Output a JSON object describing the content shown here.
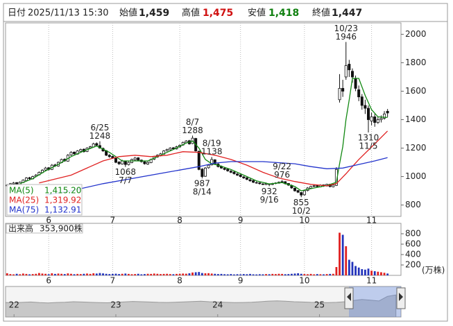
{
  "header": {
    "date_label": "日付",
    "datetime": "2025/11/13 15:30",
    "open_label": "始値",
    "open": "1,459",
    "high_label": "高値",
    "high": "1,475",
    "low_label": "安値",
    "low": "1,418",
    "close_label": "終値",
    "close": "1,447"
  },
  "chart_data": [
    {
      "type": "candlestick",
      "xlim": [
        -0.5,
        123.2
      ],
      "ylim": [
        720,
        2080
      ],
      "yticks": [
        800,
        1000,
        1200,
        1400,
        1600,
        1800,
        2000
      ],
      "xticks": [
        {
          "value": 13,
          "label": "6"
        },
        {
          "value": 33,
          "label": "7"
        },
        {
          "value": 54,
          "label": "8"
        },
        {
          "value": 73,
          "label": "9"
        },
        {
          "value": 93,
          "label": "10"
        },
        {
          "value": 114,
          "label": "11"
        }
      ],
      "grid": "x",
      "up_color": "#ffffff",
      "down_color": "#111111",
      "edge_color": "#111111",
      "ohlc": [
        [
          935,
          948,
          928,
          940
        ],
        [
          942,
          955,
          938,
          950
        ],
        [
          948,
          962,
          944,
          955
        ],
        [
          958,
          960,
          940,
          945
        ],
        [
          945,
          966,
          942,
          960
        ],
        [
          958,
          980,
          955,
          975
        ],
        [
          972,
          996,
          970,
          990
        ],
        [
          992,
          998,
          978,
          985
        ],
        [
          984,
          1006,
          980,
          1000
        ],
        [
          1002,
          1018,
          996,
          1010
        ],
        [
          1012,
          1036,
          1008,
          1030
        ],
        [
          1028,
          1052,
          1024,
          1045
        ],
        [
          1046,
          1068,
          1040,
          1060
        ],
        [
          1062,
          1066,
          1042,
          1050
        ],
        [
          1050,
          1088,
          1046,
          1080
        ],
        [
          1082,
          1090,
          1068,
          1075
        ],
        [
          1074,
          1106,
          1070,
          1100
        ],
        [
          1098,
          1126,
          1094,
          1120
        ],
        [
          1122,
          1128,
          1104,
          1110
        ],
        [
          1108,
          1158,
          1106,
          1150
        ],
        [
          1152,
          1178,
          1146,
          1170
        ],
        [
          1172,
          1176,
          1152,
          1160
        ],
        [
          1158,
          1186,
          1154,
          1180
        ],
        [
          1178,
          1196,
          1172,
          1190
        ],
        [
          1192,
          1198,
          1168,
          1175
        ],
        [
          1176,
          1206,
          1172,
          1200
        ],
        [
          1202,
          1216,
          1196,
          1210
        ],
        [
          1208,
          1238,
          1204,
          1230
        ],
        [
          1232,
          1240,
          1214,
          1220
        ],
        [
          1218,
          1248,
          1196,
          1200
        ],
        [
          1198,
          1204,
          1174,
          1180
        ],
        [
          1182,
          1186,
          1144,
          1150
        ],
        [
          1150,
          1158,
          1132,
          1140
        ],
        [
          1142,
          1148,
          1124,
          1130
        ],
        [
          1128,
          1134,
          1094,
          1100
        ],
        [
          1102,
          1108,
          1082,
          1090
        ],
        [
          1088,
          1118,
          1084,
          1110
        ],
        [
          1108,
          1112,
          1068,
          1085
        ],
        [
          1084,
          1106,
          1078,
          1100
        ],
        [
          1098,
          1126,
          1094,
          1120
        ],
        [
          1118,
          1138,
          1112,
          1130
        ],
        [
          1132,
          1136,
          1108,
          1115
        ],
        [
          1116,
          1120,
          1098,
          1105
        ],
        [
          1104,
          1110,
          1084,
          1090
        ],
        [
          1088,
          1106,
          1082,
          1100
        ],
        [
          1098,
          1126,
          1094,
          1120
        ],
        [
          1122,
          1146,
          1116,
          1140
        ],
        [
          1138,
          1156,
          1132,
          1150
        ],
        [
          1148,
          1166,
          1142,
          1160
        ],
        [
          1158,
          1186,
          1154,
          1180
        ],
        [
          1182,
          1196,
          1176,
          1190
        ],
        [
          1188,
          1206,
          1184,
          1200
        ],
        [
          1202,
          1208,
          1188,
          1195
        ],
        [
          1194,
          1216,
          1190,
          1210
        ],
        [
          1208,
          1226,
          1204,
          1220
        ],
        [
          1222,
          1246,
          1216,
          1240
        ],
        [
          1238,
          1256,
          1232,
          1250
        ],
        [
          1252,
          1258,
          1224,
          1230
        ],
        [
          1232,
          1288,
          1228,
          1270
        ],
        [
          1268,
          1272,
          1176,
          1180
        ],
        [
          1178,
          1182,
          1044,
          1050
        ],
        [
          1052,
          1060,
          987,
          1000
        ],
        [
          1002,
          1066,
          998,
          1060
        ],
        [
          1062,
          1088,
          1056,
          1080
        ],
        [
          1082,
          1138,
          1078,
          1120
        ],
        [
          1118,
          1122,
          1084,
          1090
        ],
        [
          1088,
          1094,
          1064,
          1070
        ],
        [
          1072,
          1078,
          1054,
          1060
        ],
        [
          1058,
          1064,
          1044,
          1050
        ],
        [
          1052,
          1058,
          1034,
          1040
        ],
        [
          1038,
          1046,
          1024,
          1030
        ],
        [
          1032,
          1036,
          1014,
          1020
        ],
        [
          1018,
          1026,
          1004,
          1010
        ],
        [
          1012,
          1016,
          994,
          1000
        ],
        [
          998,
          1004,
          984,
          990
        ],
        [
          992,
          996,
          974,
          980
        ],
        [
          978,
          986,
          964,
          970
        ],
        [
          972,
          976,
          954,
          960
        ],
        [
          958,
          966,
          950,
          955
        ],
        [
          956,
          960,
          944,
          950
        ],
        [
          948,
          954,
          940,
          945
        ],
        [
          944,
          958,
          940,
          950
        ],
        [
          948,
          952,
          932,
          945
        ],
        [
          944,
          956,
          940,
          950
        ],
        [
          952,
          960,
          946,
          955
        ],
        [
          954,
          966,
          950,
          960
        ],
        [
          962,
          976,
          956,
          965
        ],
        [
          964,
          968,
          944,
          950
        ],
        [
          952,
          954,
          934,
          940
        ],
        [
          938,
          944,
          914,
          920
        ],
        [
          918,
          924,
          894,
          900
        ],
        [
          902,
          906,
          884,
          890
        ],
        [
          888,
          892,
          855,
          870
        ],
        [
          872,
          906,
          866,
          900
        ],
        [
          902,
          926,
          896,
          920
        ],
        [
          918,
          936,
          914,
          930
        ],
        [
          932,
          942,
          926,
          935
        ],
        [
          936,
          940,
          922,
          930
        ],
        [
          928,
          946,
          924,
          940
        ],
        [
          942,
          944,
          928,
          935
        ],
        [
          934,
          950,
          930,
          945
        ],
        [
          946,
          948,
          924,
          930
        ],
        [
          928,
          946,
          924,
          940
        ],
        [
          938,
          1066,
          934,
          1050
        ],
        [
          1540,
          1720,
          1520,
          1620
        ],
        [
          1620,
          1680,
          1560,
          1600
        ],
        [
          1700,
          1946,
          1680,
          1780
        ],
        [
          1790,
          1820,
          1700,
          1750
        ],
        [
          1740,
          1760,
          1660,
          1700
        ],
        [
          1690,
          1710,
          1600,
          1620
        ],
        [
          1610,
          1640,
          1530,
          1560
        ],
        [
          1560,
          1580,
          1470,
          1500
        ],
        [
          1500,
          1540,
          1440,
          1480
        ],
        [
          1480,
          1500,
          1310,
          1400
        ],
        [
          1390,
          1450,
          1360,
          1420
        ],
        [
          1420,
          1440,
          1350,
          1380
        ],
        [
          1380,
          1420,
          1370,
          1400
        ],
        [
          1400,
          1430,
          1380,
          1410
        ],
        [
          1410,
          1460,
          1400,
          1440
        ],
        [
          1459,
          1475,
          1418,
          1447
        ]
      ],
      "series": [
        {
          "name": "MA(5)",
          "color": "#118811",
          "legend_value": "1,415.20",
          "x": [
            4,
            8,
            12,
            16,
            20,
            24,
            28,
            32,
            36,
            40,
            44,
            48,
            52,
            56,
            58,
            60,
            62,
            64,
            66,
            70,
            74,
            78,
            82,
            86,
            90,
            92,
            96,
            100,
            103,
            104,
            105,
            106,
            107,
            108,
            110,
            112,
            114,
            116,
            119
          ],
          "values": [
            950,
            985,
            1040,
            1085,
            1140,
            1180,
            1215,
            1170,
            1110,
            1110,
            1110,
            1150,
            1190,
            1235,
            1250,
            1200,
            1120,
            1090,
            1080,
            1050,
            1010,
            970,
            948,
            958,
            930,
            900,
            920,
            937,
            960,
            1090,
            1210,
            1400,
            1540,
            1690,
            1690,
            1570,
            1470,
            1420,
            1415
          ]
        },
        {
          "name": "MA(25)",
          "color": "#e02222",
          "legend_value": "1,319.92",
          "x": [
            10,
            20,
            30,
            35,
            40,
            45,
            50,
            55,
            60,
            65,
            70,
            75,
            80,
            85,
            90,
            95,
            100,
            103,
            106,
            110,
            115,
            119
          ],
          "values": [
            955,
            1010,
            1110,
            1140,
            1150,
            1140,
            1150,
            1175,
            1170,
            1150,
            1120,
            1080,
            1030,
            990,
            965,
            945,
            935,
            950,
            1020,
            1120,
            1230,
            1320
          ]
        },
        {
          "name": "MA(75)",
          "color": "#2233cc",
          "legend_value": "1,132.91",
          "x": [
            12,
            20,
            30,
            40,
            50,
            60,
            65,
            70,
            80,
            90,
            95,
            100,
            105,
            110,
            115,
            119
          ],
          "values": [
            870,
            900,
            950,
            990,
            1030,
            1070,
            1095,
            1105,
            1105,
            1090,
            1070,
            1055,
            1060,
            1085,
            1110,
            1133
          ]
        }
      ],
      "annotations": [
        {
          "date": "6/25",
          "price": 1248,
          "index": 29
        },
        {
          "date": "7/7",
          "price": 1068,
          "index": 37
        },
        {
          "date": "8/7",
          "price": 1288,
          "index": 58
        },
        {
          "date": "8/14",
          "price": 987,
          "index": 61
        },
        {
          "date": "8/19",
          "price": 1138,
          "index": 64
        },
        {
          "date": "9/16",
          "price": 932,
          "index": 82
        },
        {
          "date": "9/22",
          "price": 976,
          "index": 86
        },
        {
          "date": "10/2",
          "price": 855,
          "index": 92
        },
        {
          "date": "10/23",
          "price": 1946,
          "index": 106
        },
        {
          "date": "11/5",
          "price": 1310,
          "index": 113
        }
      ]
    },
    {
      "type": "bar",
      "title": "出来高",
      "latest": "353,900株",
      "unit": "(万株)",
      "xlim": [
        -0.5,
        123.2
      ],
      "ylim": [
        0,
        1000
      ],
      "yticks": [
        200,
        400,
        600,
        800
      ],
      "xticks": [
        {
          "value": 13,
          "label": "6"
        },
        {
          "value": 33,
          "label": "7"
        },
        {
          "value": 54,
          "label": "8"
        },
        {
          "value": 73,
          "label": "9"
        },
        {
          "value": 93,
          "label": "10"
        },
        {
          "value": 114,
          "label": "11"
        }
      ],
      "grid": "x",
      "up_color": "#e02020",
      "down_color": "#2233bb",
      "values": [
        40,
        25,
        20,
        30,
        22,
        35,
        28,
        20,
        25,
        30,
        45,
        35,
        30,
        22,
        40,
        28,
        35,
        30,
        25,
        38,
        30,
        22,
        28,
        25,
        30,
        35,
        28,
        40,
        35,
        45,
        38,
        30,
        25,
        28,
        32,
        25,
        30,
        35,
        28,
        22,
        25,
        30,
        20,
        25,
        30,
        28,
        35,
        30,
        25,
        28,
        30,
        25,
        22,
        28,
        30,
        35,
        32,
        40,
        55,
        60,
        65,
        45,
        40,
        42,
        35,
        30,
        25,
        28,
        22,
        20,
        25,
        18,
        22,
        20,
        25,
        22,
        28,
        20,
        18,
        22,
        20,
        25,
        22,
        28,
        25,
        30,
        28,
        22,
        25,
        30,
        35,
        40,
        30,
        25,
        22,
        28,
        20,
        25,
        22,
        20,
        25,
        28,
        30,
        160,
        820,
        780,
        560,
        300,
        260,
        180,
        150,
        120,
        110,
        130,
        90,
        80,
        70,
        60,
        50,
        35.39
      ]
    },
    {
      "type": "area",
      "xlim": [
        0,
        46.6
      ],
      "ylim": [
        0,
        2000
      ],
      "color": "#c8c8c8",
      "xticks": [
        {
          "value": 1,
          "label": "22"
        },
        {
          "value": 13,
          "label": "23"
        },
        {
          "value": 25,
          "label": "24"
        },
        {
          "value": 37,
          "label": "25"
        }
      ],
      "values": [
        950,
        930,
        960,
        980,
        940,
        920,
        950,
        970,
        1000,
        980,
        960,
        940,
        930,
        960,
        990,
        1020,
        1000,
        980,
        960,
        950,
        970,
        990,
        1010,
        1030,
        1000,
        980,
        960,
        940,
        950,
        970,
        1000,
        1040,
        1060,
        1030,
        1000,
        980,
        960,
        950,
        940,
        960,
        1000,
        1080,
        1150,
        1100,
        1050,
        1350,
        1447
      ]
    }
  ]
}
